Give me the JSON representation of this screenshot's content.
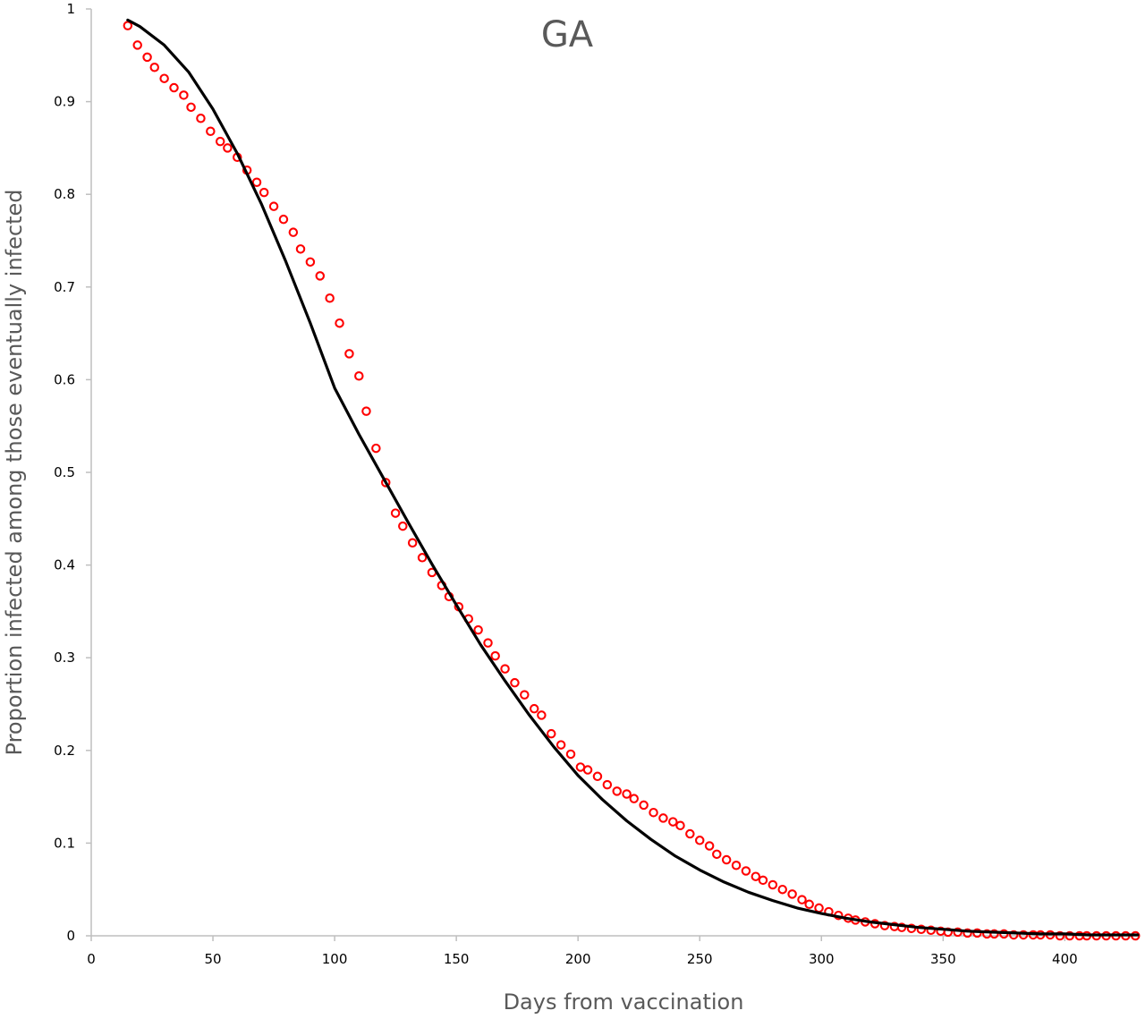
{
  "chart_data": {
    "type": "scatter",
    "title": "GA",
    "xlabel": "Days from vaccination",
    "ylabel": "Proportion infected among those eventually infected",
    "xlim": [
      0,
      430
    ],
    "ylim": [
      0,
      1
    ],
    "x_ticks": [
      0,
      50,
      100,
      150,
      200,
      250,
      300,
      350,
      400
    ],
    "y_ticks": [
      0,
      0.1,
      0.2,
      0.3,
      0.4,
      0.5,
      0.6,
      0.7,
      0.8,
      0.9,
      1
    ],
    "x_tick_labels": [
      "0",
      "50",
      "100",
      "150",
      "200",
      "250",
      "300",
      "350",
      "400"
    ],
    "y_tick_labels": [
      "0",
      "0.1",
      "0.2",
      "0.3",
      "0.4",
      "0.5",
      "0.6",
      "0.7",
      "0.8",
      "0.9",
      "1"
    ],
    "grid": false,
    "legend": "none",
    "series": [
      {
        "kind": "markers",
        "marker": "open-circle",
        "color": "#ff0000",
        "x": [
          15,
          19,
          23,
          26,
          30,
          34,
          38,
          41,
          45,
          49,
          53,
          56,
          60,
          64,
          68,
          71,
          75,
          79,
          83,
          86,
          90,
          94,
          98,
          102,
          106,
          110,
          113,
          117,
          121,
          125,
          128,
          132,
          136,
          140,
          144,
          147,
          151,
          155,
          159,
          163,
          166,
          170,
          174,
          178,
          182,
          185,
          189,
          193,
          197,
          201,
          204,
          208,
          212,
          216,
          220,
          223,
          227,
          231,
          235,
          239,
          242,
          246,
          250,
          254,
          257,
          261,
          265,
          269,
          273,
          276,
          280,
          284,
          288,
          292,
          295,
          299,
          303,
          307,
          311,
          314,
          318,
          322,
          326,
          330,
          333,
          337,
          341,
          345,
          349,
          352,
          356,
          360,
          364,
          368,
          371,
          375,
          379,
          383,
          387,
          390,
          394,
          398,
          402,
          406,
          409,
          413,
          417,
          421,
          425,
          429
        ],
        "y": [
          0.982,
          0.961,
          0.948,
          0.937,
          0.925,
          0.915,
          0.907,
          0.894,
          0.882,
          0.868,
          0.857,
          0.85,
          0.84,
          0.826,
          0.813,
          0.802,
          0.787,
          0.773,
          0.759,
          0.741,
          0.727,
          0.712,
          0.688,
          0.661,
          0.628,
          0.604,
          0.566,
          0.526,
          0.489,
          0.456,
          0.442,
          0.424,
          0.408,
          0.392,
          0.378,
          0.366,
          0.355,
          0.342,
          0.33,
          0.316,
          0.302,
          0.288,
          0.273,
          0.26,
          0.245,
          0.238,
          0.218,
          0.206,
          0.196,
          0.182,
          0.179,
          0.172,
          0.163,
          0.156,
          0.153,
          0.148,
          0.141,
          0.133,
          0.127,
          0.123,
          0.119,
          0.11,
          0.103,
          0.097,
          0.088,
          0.082,
          0.076,
          0.07,
          0.064,
          0.06,
          0.055,
          0.05,
          0.045,
          0.039,
          0.034,
          0.03,
          0.026,
          0.022,
          0.019,
          0.017,
          0.015,
          0.013,
          0.011,
          0.01,
          0.009,
          0.008,
          0.007,
          0.006,
          0.005,
          0.004,
          0.004,
          0.003,
          0.003,
          0.002,
          0.002,
          0.002,
          0.001,
          0.001,
          0.001,
          0.001,
          0.001,
          0.0,
          0.0,
          0.0,
          0.0,
          0.0,
          0.0,
          0.0,
          0.0,
          0.0
        ]
      },
      {
        "kind": "line",
        "color": "#000000",
        "x": [
          15,
          20,
          30,
          40,
          50,
          60,
          70,
          80,
          90,
          100,
          110,
          120,
          130,
          140,
          150,
          160,
          170,
          180,
          190,
          200,
          210,
          220,
          230,
          240,
          250,
          260,
          270,
          280,
          290,
          300,
          310,
          320,
          330,
          340,
          350,
          360,
          370,
          380,
          390,
          400,
          410,
          420,
          430
        ],
        "y": [
          0.988,
          0.981,
          0.961,
          0.932,
          0.892,
          0.844,
          0.789,
          0.727,
          0.661,
          0.591,
          0.541,
          0.494,
          0.447,
          0.401,
          0.357,
          0.314,
          0.275,
          0.238,
          0.204,
          0.173,
          0.147,
          0.124,
          0.104,
          0.086,
          0.071,
          0.058,
          0.047,
          0.038,
          0.03,
          0.024,
          0.019,
          0.015,
          0.012,
          0.009,
          0.007,
          0.005,
          0.004,
          0.003,
          0.002,
          0.002,
          0.001,
          0.001,
          0.001
        ]
      }
    ]
  }
}
